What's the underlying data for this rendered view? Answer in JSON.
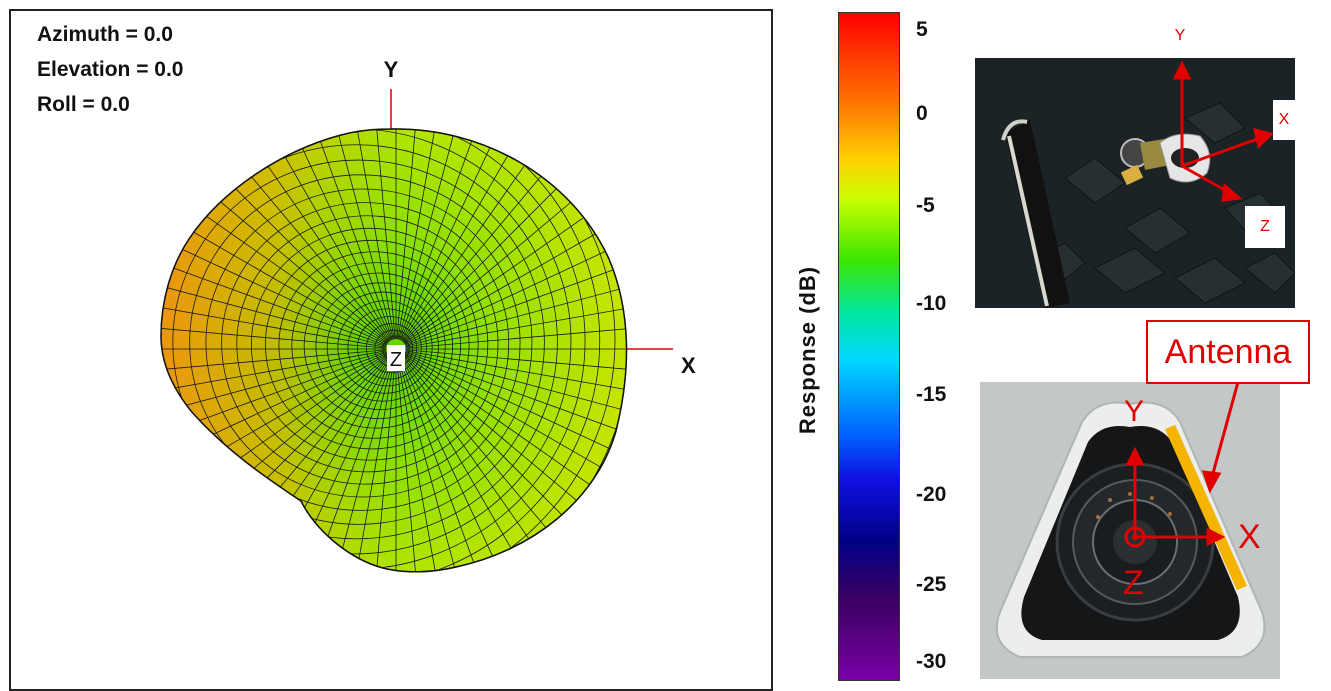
{
  "orientation": {
    "azimuth": "Azimuth = 0.0",
    "elevation": "Elevation = 0.0",
    "roll": "Roll = 0.0"
  },
  "axes": {
    "x": "X",
    "y": "Y",
    "z": "Z"
  },
  "colorbar": {
    "label": "Response  (dB)",
    "ticks": [
      "5",
      "0",
      "-5",
      "-10",
      "-15",
      "-20",
      "-25",
      "-30"
    ]
  },
  "photo_top": {
    "x": "X",
    "y": "Y",
    "z": "Z"
  },
  "photo_bottom": {
    "antenna": "Antenna",
    "x": "X",
    "y": "Y",
    "z": "Z"
  },
  "colors": {
    "accent_red": "#e00000",
    "antenna_bar": "#f5b400"
  }
}
